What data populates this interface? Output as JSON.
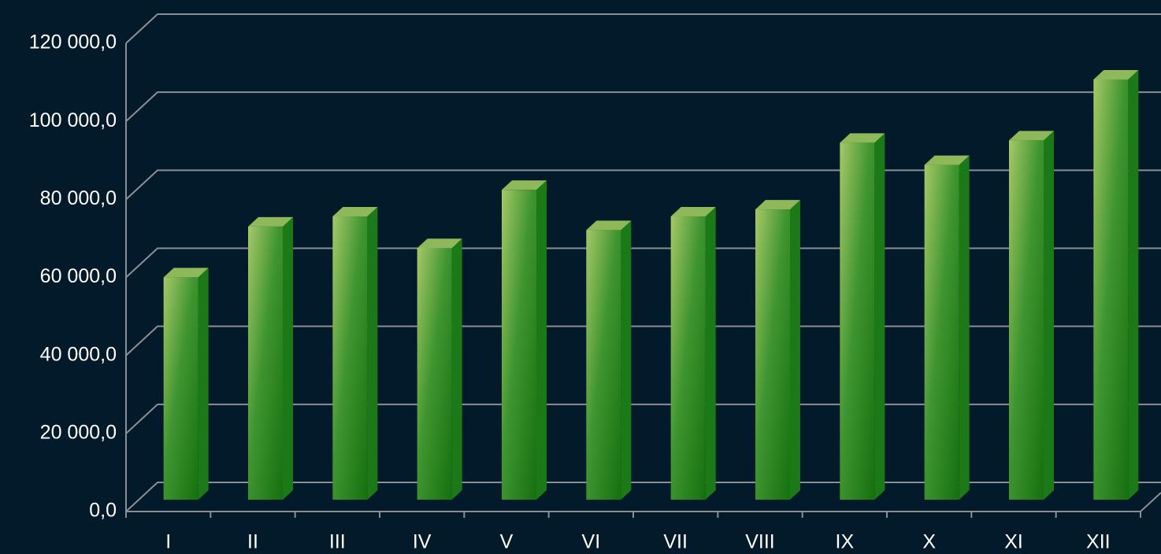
{
  "chart_data": {
    "type": "bar",
    "categories": [
      "I",
      "II",
      "III",
      "IV",
      "V",
      "VI",
      "VII",
      "VIII",
      "IX",
      "X",
      "XI",
      "XII"
    ],
    "values": [
      57000,
      70000,
      72600,
      64500,
      79400,
      69100,
      72600,
      74400,
      91500,
      85800,
      92100,
      107700
    ],
    "color": "#1b7a17",
    "ylim": [
      0,
      120000
    ],
    "yticks": [
      {
        "value": 0,
        "label": "0,0"
      },
      {
        "value": 20000,
        "label": "20 000,0"
      },
      {
        "value": 40000,
        "label": "40 000,0"
      },
      {
        "value": 60000,
        "label": "60 000,0"
      },
      {
        "value": 80000,
        "label": "80 000,0"
      },
      {
        "value": 100000,
        "label": "100 000,0"
      },
      {
        "value": 120000,
        "label": "120 000,0"
      }
    ],
    "grid": true
  }
}
